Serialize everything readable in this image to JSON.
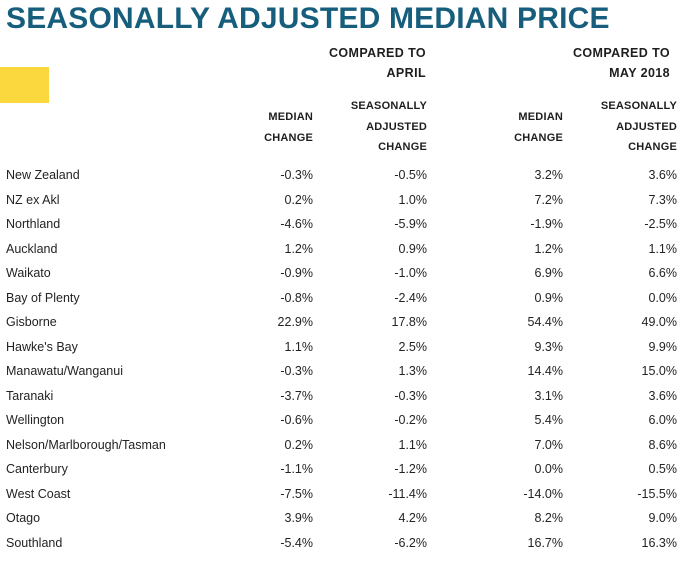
{
  "title": "SEASONALLY ADJUSTED MEDIAN PRICE",
  "colors": {
    "title_teal": "#175E7D",
    "highlight_yellow": "#FBD93E",
    "body_text": "#232323",
    "header_text": "#1E1E1E"
  },
  "column_groups": [
    {
      "line1": "COMPARED TO",
      "line2": "APRIL"
    },
    {
      "line1": "COMPARED TO",
      "line2": "MAY 2018"
    }
  ],
  "subheaders": [
    {
      "lines": [
        "MEDIAN",
        "CHANGE"
      ]
    },
    {
      "lines": [
        "SEASONALLY",
        "ADJUSTED",
        "CHANGE"
      ]
    },
    {
      "lines": [
        "MEDIAN",
        "CHANGE"
      ]
    },
    {
      "lines": [
        "SEASONALLY",
        "ADJUSTED",
        "CHANGE"
      ]
    }
  ],
  "table": {
    "rows": [
      {
        "region": "New Zealand",
        "values": [
          "-0.3%",
          "-0.5%",
          "3.2%",
          "3.6%"
        ]
      },
      {
        "region": "NZ ex Akl",
        "values": [
          "0.2%",
          "1.0%",
          "7.2%",
          "7.3%"
        ]
      },
      {
        "region": "Northland",
        "values": [
          "-4.6%",
          "-5.9%",
          "-1.9%",
          "-2.5%"
        ]
      },
      {
        "region": "Auckland",
        "values": [
          "1.2%",
          "0.9%",
          "1.2%",
          "1.1%"
        ]
      },
      {
        "region": "Waikato",
        "values": [
          "-0.9%",
          "-1.0%",
          "6.9%",
          "6.6%"
        ]
      },
      {
        "region": "Bay of Plenty",
        "values": [
          "-0.8%",
          "-2.4%",
          "0.9%",
          "0.0%"
        ]
      },
      {
        "region": "Gisborne",
        "values": [
          "22.9%",
          "17.8%",
          "54.4%",
          "49.0%"
        ]
      },
      {
        "region": "Hawke's Bay",
        "values": [
          "1.1%",
          "2.5%",
          "9.3%",
          "9.9%"
        ]
      },
      {
        "region": "Manawatu/Wanganui",
        "values": [
          "-0.3%",
          "1.3%",
          "14.4%",
          "15.0%"
        ]
      },
      {
        "region": "Taranaki",
        "values": [
          "-3.7%",
          "-0.3%",
          "3.1%",
          "3.6%"
        ]
      },
      {
        "region": "Wellington",
        "values": [
          "-0.6%",
          "-0.2%",
          "5.4%",
          "6.0%"
        ]
      },
      {
        "region": "Nelson/Marlborough/Tasman",
        "values": [
          "0.2%",
          "1.1%",
          "7.0%",
          "8.6%"
        ]
      },
      {
        "region": "Canterbury",
        "values": [
          "-1.1%",
          "-1.2%",
          "0.0%",
          "0.5%"
        ]
      },
      {
        "region": "West Coast",
        "values": [
          "-7.5%",
          "-11.4%",
          "-14.0%",
          "-15.5%"
        ]
      },
      {
        "region": "Otago",
        "values": [
          "3.9%",
          "4.2%",
          "8.2%",
          "9.0%"
        ]
      },
      {
        "region": "Southland",
        "values": [
          "-5.4%",
          "-6.2%",
          "16.7%",
          "16.3%"
        ]
      }
    ]
  }
}
